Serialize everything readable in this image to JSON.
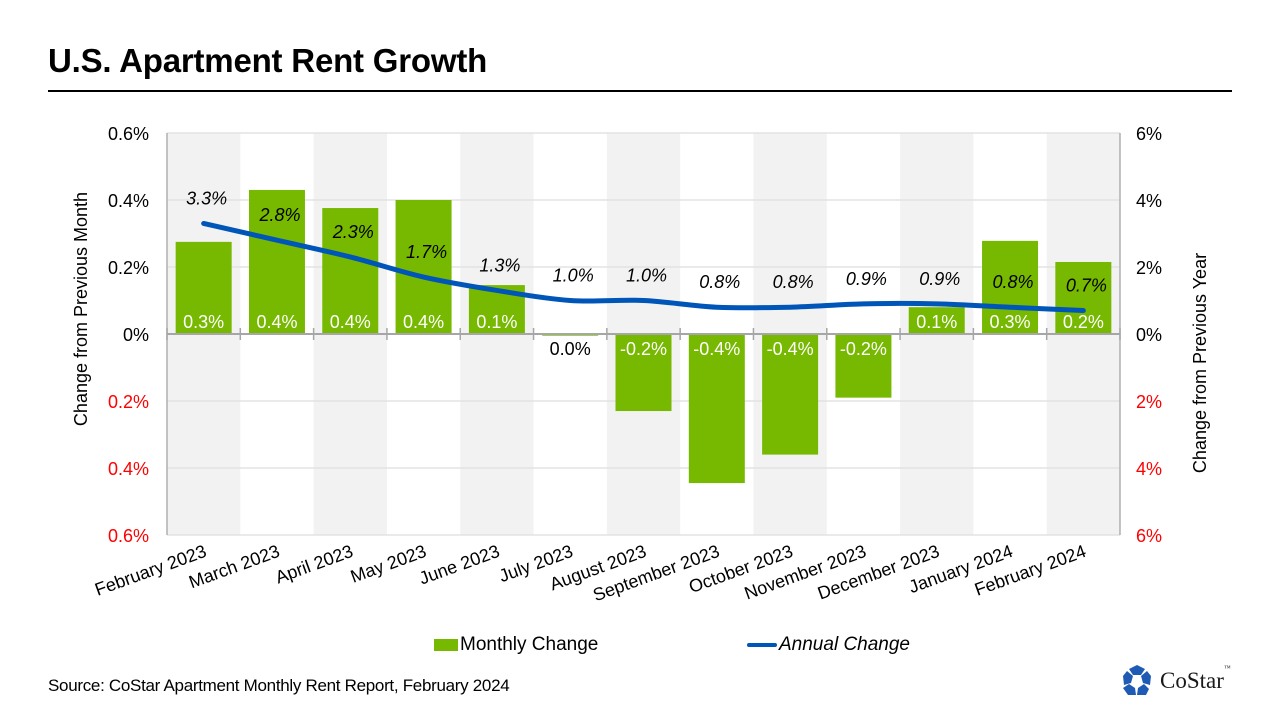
{
  "title": "U.S. Apartment Rent Growth",
  "source": "Source: CoStar Apartment Monthly  Rent Report, February 2024",
  "logo": {
    "text": "CoStar",
    "tm": "™",
    "icon": "costar-star-icon"
  },
  "colors": {
    "bar": "#76b900",
    "line": "#0055b8",
    "negative_tick": "#ff0000",
    "band": "#f2f2f2"
  },
  "chart_data": {
    "type": "bar",
    "title": "U.S. Apartment Rent Growth",
    "categories": [
      "February 2023",
      "March 2023",
      "April 2023",
      "May 2023",
      "June 2023",
      "July 2023",
      "August 2023",
      "September 2023",
      "October 2023",
      "November 2023",
      "December 2023",
      "January 2024",
      "February 2024"
    ],
    "series": [
      {
        "name": "Monthly Change",
        "type": "bar",
        "axis": "left",
        "values": [
          0.275,
          0.43,
          0.376,
          0.4,
          0.146,
          -0.005,
          -0.23,
          -0.445,
          -0.36,
          -0.19,
          0.08,
          0.278,
          0.215
        ],
        "labels": [
          "0.3%",
          "0.4%",
          "0.4%",
          "0.4%",
          "0.1%",
          "0.0%",
          "-0.2%",
          "-0.4%",
          "-0.4%",
          "-0.2%",
          "0.1%",
          "0.3%",
          "0.2%"
        ]
      },
      {
        "name": "Annual Change",
        "type": "line",
        "axis": "right",
        "values": [
          3.3,
          2.8,
          2.3,
          1.7,
          1.3,
          1.0,
          1.0,
          0.8,
          0.8,
          0.9,
          0.9,
          0.8,
          0.7
        ],
        "labels": [
          "3.3%",
          "2.8%",
          "2.3%",
          "1.7%",
          "1.3%",
          "1.0%",
          "1.0%",
          "0.8%",
          "0.8%",
          "0.9%",
          "0.9%",
          "0.8%",
          "0.7%"
        ]
      }
    ],
    "y_left": {
      "label": "Change  from Previous Month",
      "ylim": [
        -0.6,
        0.6
      ],
      "ticks": [
        {
          "value": 0.6,
          "label": "0.6%",
          "negative": false
        },
        {
          "value": 0.4,
          "label": "0.4%",
          "negative": false
        },
        {
          "value": 0.2,
          "label": "0.2%",
          "negative": false
        },
        {
          "value": 0.0,
          "label": "0%",
          "negative": false
        },
        {
          "value": -0.2,
          "label": "0.2%",
          "negative": true
        },
        {
          "value": -0.4,
          "label": "0.4%",
          "negative": true
        },
        {
          "value": -0.6,
          "label": "0.6%",
          "negative": true
        }
      ]
    },
    "y_right": {
      "label": "Change  from Previous Year",
      "ylim": [
        -6,
        6
      ],
      "ticks": [
        {
          "value": 6,
          "label": "6%",
          "negative": false
        },
        {
          "value": 4,
          "label": "4%",
          "negative": false
        },
        {
          "value": 2,
          "label": "2%",
          "negative": false
        },
        {
          "value": 0,
          "label": "0%",
          "negative": false
        },
        {
          "value": -2,
          "label": "2%",
          "negative": true
        },
        {
          "value": -4,
          "label": "4%",
          "negative": true
        },
        {
          "value": -6,
          "label": "6%",
          "negative": true
        }
      ]
    },
    "grid": true,
    "alternating_bands": true,
    "legend": {
      "position": "bottom",
      "entries": [
        {
          "label": "Monthly Change",
          "type": "bar"
        },
        {
          "label": "Annual Change",
          "type": "line"
        }
      ]
    }
  }
}
